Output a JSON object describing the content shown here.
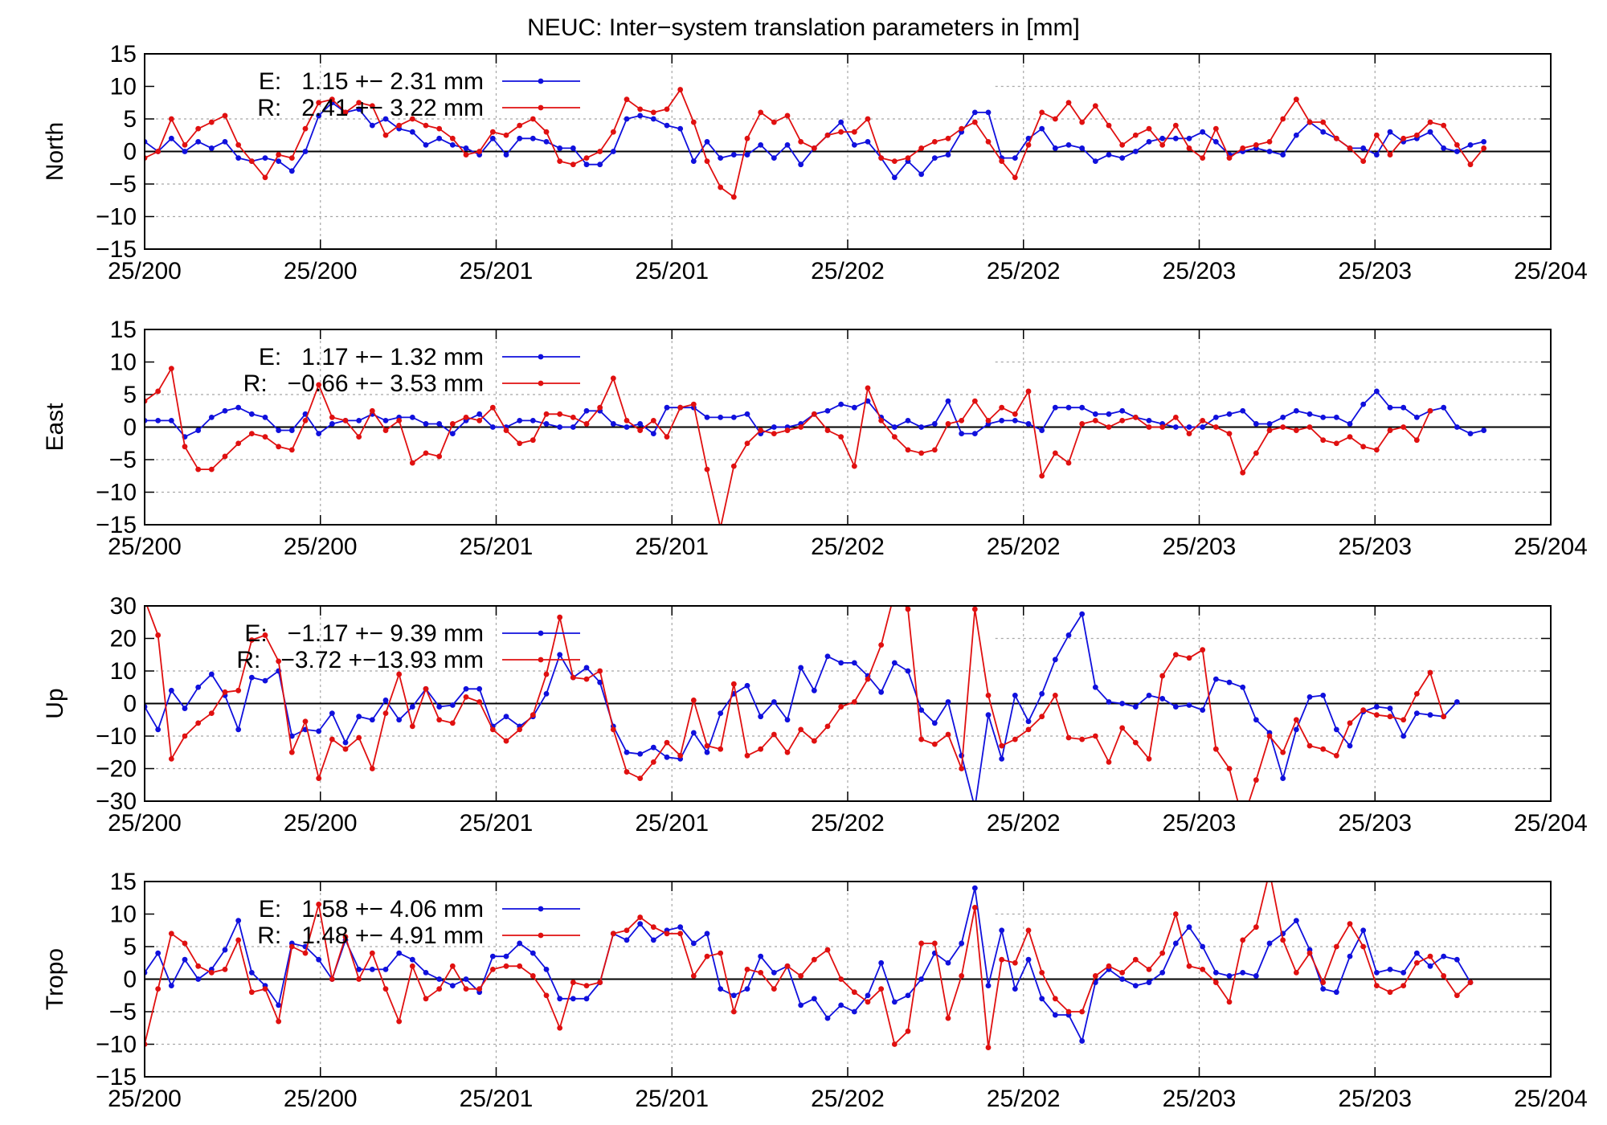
{
  "title": "NEUC: Inter−system translation parameters in [mm]",
  "colors": {
    "E": "#1010dd",
    "R": "#e01010",
    "grid": "#a8a8a8",
    "frame": "#000000"
  },
  "chart_data": [
    {
      "type": "line",
      "ylabel": "North",
      "ylim": [
        -15,
        15
      ],
      "yticks": [
        "15",
        "10",
        "5",
        "0",
        "−5",
        "−10",
        "−15"
      ],
      "xlim": [
        0,
        105
      ],
      "xticks": [
        "25/200",
        "25/200",
        "25/201",
        "25/201",
        "25/202",
        "25/202",
        "25/203",
        "25/203",
        "25/204"
      ],
      "grid": true,
      "legend": "top-left",
      "series": [
        {
          "key": "E",
          "name": "E:   1.15 +− 2.31 mm",
          "values": [
            1.5,
            0,
            2,
            0,
            1.5,
            0.5,
            1.5,
            -1,
            -1.5,
            -1,
            -1.5,
            -3,
            0,
            5.5,
            7.5,
            6,
            6.5,
            4,
            5,
            3.5,
            3,
            1,
            2,
            1,
            0.5,
            -0.5,
            2,
            -0.5,
            2,
            2,
            1.5,
            0.5,
            0.5,
            -2,
            -2,
            0,
            5,
            5.5,
            5,
            4,
            3.5,
            -1.5,
            1.5,
            -1,
            -0.5,
            -0.5,
            1,
            -1,
            1,
            -2,
            0.5,
            2.5,
            4.5,
            1,
            1.5,
            -1,
            -4,
            -1.5,
            -3.5,
            -1,
            -0.5,
            3,
            6,
            6,
            -1,
            -1,
            2,
            3.5,
            0.5,
            1,
            0.5,
            -1.5,
            -0.5,
            -1,
            0,
            1.5,
            2,
            2,
            2,
            3,
            1.5,
            -0.5,
            0,
            0.5,
            0,
            -0.5,
            2.5,
            4.5,
            3,
            2,
            0.5,
            0.5,
            -0.5,
            3,
            1.5,
            2,
            3,
            0.5,
            0,
            1,
            1.5
          ]
        },
        {
          "key": "R",
          "name": "R:   2.41 +− 3.22 mm",
          "values": [
            -1,
            0,
            5,
            1,
            3.5,
            4.5,
            5.5,
            1,
            -1.5,
            -4,
            -0.5,
            -1,
            3.5,
            7.5,
            8,
            6,
            7.5,
            7,
            2.5,
            4,
            5,
            4,
            3.5,
            2,
            -0.5,
            0,
            3,
            2.5,
            4,
            5,
            3,
            -1.5,
            -2,
            -1,
            0,
            3,
            8,
            6.5,
            6,
            6.5,
            9.5,
            4.5,
            -1.5,
            -5.5,
            -7,
            2,
            6,
            4.5,
            5.5,
            1.5,
            0.5,
            2.5,
            3,
            3,
            5,
            -1,
            -1.5,
            -1,
            0.5,
            1.5,
            2,
            3.5,
            4.5,
            1.5,
            -1.5,
            -4,
            1,
            6,
            5,
            7.5,
            4.5,
            7,
            4,
            1,
            2.5,
            3.5,
            1,
            4,
            0.5,
            -1,
            3.5,
            -1,
            0.5,
            1,
            1.5,
            5,
            8,
            4.5,
            4.5,
            2,
            0.5,
            -1.5,
            2.5,
            -0.5,
            2,
            2.5,
            4.5,
            4,
            1,
            -2,
            0.5
          ]
        }
      ]
    },
    {
      "type": "line",
      "ylabel": "East",
      "ylim": [
        -15,
        15
      ],
      "yticks": [
        "15",
        "10",
        "5",
        "0",
        "−5",
        "−10",
        "−15"
      ],
      "xlim": [
        0,
        105
      ],
      "xticks": [
        "25/200",
        "25/200",
        "25/201",
        "25/201",
        "25/202",
        "25/202",
        "25/203",
        "25/203",
        "25/204"
      ],
      "grid": true,
      "legend": "top-left",
      "series": [
        {
          "key": "E",
          "name": "E:   1.17 +− 1.32 mm",
          "values": [
            1,
            1,
            1,
            -1.5,
            -0.5,
            1.5,
            2.5,
            3,
            2,
            1.5,
            -0.5,
            -0.5,
            2,
            -1,
            0.5,
            1,
            1,
            2,
            1,
            1.5,
            1.5,
            0.5,
            0.5,
            -1,
            1,
            2,
            0,
            0,
            1,
            1,
            0.5,
            0,
            0,
            2.5,
            2.5,
            0.5,
            0,
            0.5,
            -1,
            3,
            3,
            3,
            1.5,
            1.5,
            1.5,
            2,
            -1,
            0,
            0,
            0.5,
            2,
            2.5,
            3.5,
            3,
            4,
            1.5,
            0,
            1,
            0,
            0.5,
            4,
            -1,
            -1,
            0.5,
            1,
            1,
            0.5,
            -0.5,
            3,
            3,
            3,
            2,
            2,
            2.5,
            1.5,
            1,
            0.5,
            0,
            0,
            0,
            1.5,
            2,
            2.5,
            0.5,
            0.5,
            1.5,
            2.5,
            2,
            1.5,
            1.5,
            0.5,
            3.5,
            5.5,
            3,
            3,
            1.5,
            2.5,
            3,
            0,
            -1,
            -0.5
          ]
        },
        {
          "key": "R",
          "name": "R:   −0.66 +− 3.53 mm",
          "values": [
            4,
            5.5,
            9,
            -3,
            -6.5,
            -6.5,
            -4.5,
            -2.5,
            -1,
            -1.5,
            -3,
            -3.5,
            1,
            6.5,
            1.5,
            1,
            -1.5,
            2.5,
            -0.5,
            1,
            -5.5,
            -4,
            -4.5,
            0.5,
            1.5,
            1,
            3,
            -0.5,
            -2.5,
            -2,
            2,
            2,
            1.5,
            0.5,
            3,
            7.5,
            1,
            -0.5,
            1,
            -1.5,
            3,
            3.5,
            -6.5,
            -15.5,
            -6,
            -2.5,
            -0.5,
            -1,
            -0.5,
            0,
            2,
            -0.5,
            -1.5,
            -6,
            6,
            1,
            -1.5,
            -3.5,
            -4,
            -3.5,
            0.5,
            1,
            4,
            1,
            3,
            2,
            5.5,
            -7.5,
            -4,
            -5.5,
            0.5,
            1,
            0,
            1,
            1.5,
            0,
            0,
            1.5,
            -1,
            1,
            0,
            -1,
            -7,
            -4,
            -0.5,
            0,
            -0.5,
            0,
            -2,
            -2.5,
            -1.5,
            -3,
            -3.5,
            -0.5,
            0,
            -2,
            2.5
          ]
        }
      ]
    },
    {
      "type": "line",
      "ylabel": "Up",
      "ylim": [
        -30,
        30
      ],
      "yticks": [
        "30",
        "20",
        "10",
        "0",
        "−10",
        "−20",
        "−30"
      ],
      "xlim": [
        0,
        105
      ],
      "xticks": [
        "25/200",
        "25/200",
        "25/201",
        "25/201",
        "25/202",
        "25/202",
        "25/203",
        "25/203",
        "25/204"
      ],
      "grid": true,
      "legend": "top-left",
      "series": [
        {
          "key": "E",
          "name": "E:   −1.17 +− 9.39 mm",
          "values": [
            -1,
            -8,
            4,
            -1.5,
            5,
            9,
            2.5,
            -8,
            8,
            7,
            10,
            -10,
            -8,
            -8.5,
            -3,
            -12,
            -4,
            -5,
            1,
            -5,
            -1,
            4.5,
            -1,
            -0.5,
            4.5,
            4.5,
            -7,
            -4,
            -7,
            -4,
            3,
            15,
            8,
            11,
            6.5,
            -7,
            -15,
            -15.5,
            -13.5,
            -16.5,
            -17,
            -9,
            -15,
            -3,
            3,
            5.5,
            -4,
            0.5,
            -5,
            11,
            4,
            14.5,
            12.5,
            12.5,
            8.5,
            3.5,
            12.5,
            10,
            -2,
            -6,
            0.5,
            -16,
            -32,
            -3.5,
            -17,
            2.5,
            -5.5,
            3,
            13.5,
            21,
            27.5,
            5,
            0.5,
            0,
            -1,
            2.5,
            1.5,
            -1,
            -0.5,
            -2,
            7.5,
            6.5,
            5,
            -5,
            -9,
            -23,
            -8,
            2,
            2.5,
            -8,
            -13,
            -2.5,
            -1,
            -1.5,
            -10,
            -3,
            -3.5,
            -4,
            0.5
          ]
        },
        {
          "key": "R",
          "name": "R:   −3.72 +−13.93 mm",
          "values": [
            32,
            21,
            -17,
            -10,
            -6,
            -3,
            3.5,
            4,
            19.5,
            21,
            13,
            -15,
            -5.5,
            -23,
            -11,
            -14,
            -10.5,
            -20,
            -3,
            9,
            -7,
            4.5,
            -5,
            -6,
            2,
            0.5,
            -8,
            -11.5,
            -8,
            -3.5,
            9,
            26.5,
            8,
            7.5,
            10,
            -8,
            -21,
            -23,
            -18,
            -12,
            -16,
            1,
            -13,
            -14,
            6,
            -16,
            -14,
            -9.5,
            -15,
            -8,
            -11.5,
            -7,
            -1,
            0.5,
            7.5,
            18,
            34,
            29,
            -11,
            -12.5,
            -9.5,
            -20,
            29,
            2.5,
            -13,
            -11,
            -8,
            -4,
            2.5,
            -10.5,
            -11,
            -10,
            -18,
            -7.5,
            -12,
            -17,
            8.5,
            15,
            14,
            16.5,
            -14,
            -20,
            -36,
            -23.5,
            -10,
            -15,
            -5,
            -13,
            -14,
            -16,
            -6,
            -2,
            -3.5,
            -4,
            -5,
            3,
            9.5,
            -4
          ]
        }
      ]
    },
    {
      "type": "line",
      "ylabel": "Tropo",
      "ylim": [
        -15,
        15
      ],
      "yticks": [
        "15",
        "10",
        "5",
        "0",
        "−5",
        "−10",
        "−15"
      ],
      "xlim": [
        0,
        105
      ],
      "xticks": [
        "25/200",
        "25/200",
        "25/201",
        "25/201",
        "25/202",
        "25/202",
        "25/203",
        "25/203",
        "25/204"
      ],
      "grid": true,
      "legend": "top-left",
      "series": [
        {
          "key": "E",
          "name": "E:   1.58 +− 4.06 mm",
          "values": [
            1,
            4,
            -1,
            3,
            0,
            1.5,
            4.5,
            9,
            1,
            -1,
            -4,
            5.5,
            5,
            3,
            0,
            6,
            1.5,
            1.5,
            1.5,
            4,
            3,
            1,
            0,
            -1,
            0,
            -2,
            3.5,
            3.5,
            5.5,
            4,
            1.5,
            -3,
            -3,
            -3,
            -0.5,
            7,
            6,
            8.5,
            6,
            7.5,
            8,
            5.5,
            7,
            -1.5,
            -2.5,
            -1.5,
            3.5,
            1,
            2,
            -4,
            -3,
            -6,
            -4,
            -5,
            -2.5,
            2.5,
            -3.5,
            -2.5,
            0,
            4,
            2.5,
            5.5,
            14,
            -1,
            7.5,
            -1.5,
            3,
            -3,
            -5.5,
            -5.5,
            -9.5,
            -0.5,
            1.5,
            0,
            -1,
            -0.5,
            1,
            5.5,
            8,
            5,
            1,
            0.5,
            1,
            0.5,
            5.5,
            7,
            9,
            4.5,
            -1.5,
            -2,
            3.5,
            7.5,
            1,
            1.5,
            1,
            4,
            2,
            3.5,
            3,
            -0.5
          ]
        },
        {
          "key": "R",
          "name": "R:   1.48 +− 4.91 mm",
          "values": [
            -10,
            -1.5,
            7,
            5.5,
            2,
            1,
            1.5,
            6,
            -2,
            -1.5,
            -6.5,
            5,
            4,
            11.5,
            0,
            6.5,
            0,
            4,
            -1.5,
            -6.5,
            2,
            -3,
            -1.5,
            2,
            -1.5,
            -1.5,
            1.5,
            2,
            2,
            0.5,
            -2.5,
            -7.5,
            -0.5,
            -1,
            -0.5,
            7,
            7.5,
            9.5,
            8,
            7,
            7,
            0.5,
            3.5,
            4,
            -5,
            1.5,
            1,
            -1.5,
            2,
            0.5,
            3,
            4.5,
            0,
            -2,
            -3.5,
            -1.5,
            -10,
            -8,
            5.5,
            5.5,
            -6,
            0.5,
            11,
            -10.5,
            3,
            2.5,
            7.5,
            1,
            -3,
            -5,
            -5,
            0.5,
            2,
            1,
            3,
            1.5,
            4,
            10,
            2,
            1.5,
            -0.5,
            -3.5,
            6,
            8,
            16.5,
            6,
            1,
            4,
            -0.5,
            5,
            8.5,
            5,
            -1,
            -2,
            -1,
            2.5,
            3.5,
            0.5,
            -2.5,
            -0.5
          ]
        }
      ]
    }
  ]
}
